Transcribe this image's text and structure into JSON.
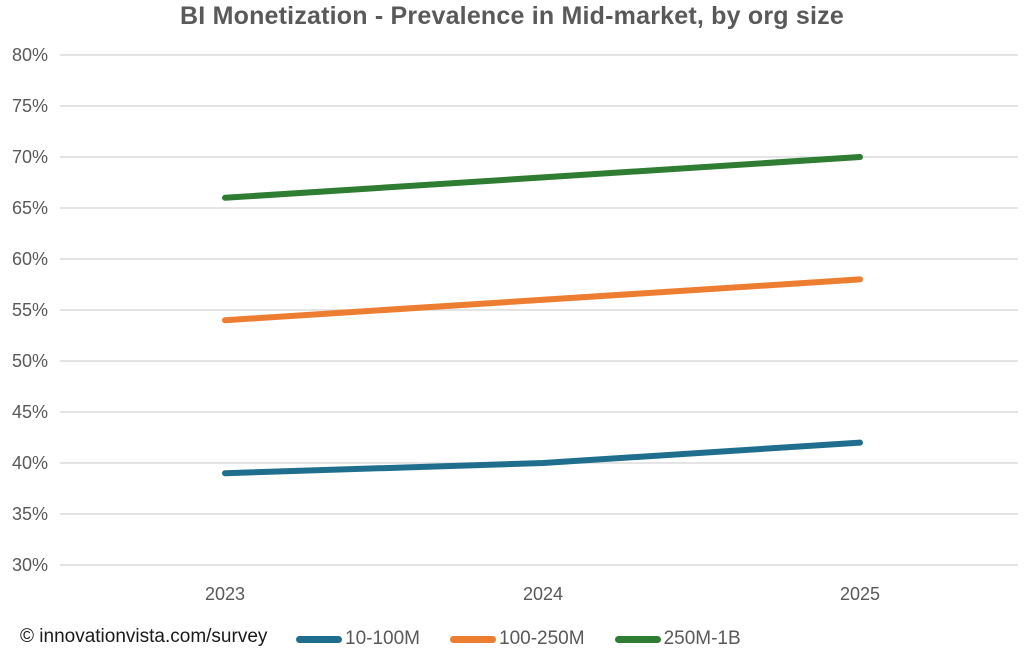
{
  "title": "BI Monetization - Prevalence in Mid-market, by org size",
  "footer": {
    "copyright": "© innovationvista.com/survey"
  },
  "chart_data": {
    "type": "line",
    "title": "BI Monetization - Prevalence in Mid-market, by org size",
    "categories": [
      "2023",
      "2024",
      "2025"
    ],
    "series": [
      {
        "name": "10-100M",
        "color": "#1F6E8E",
        "values": [
          39,
          40,
          42
        ]
      },
      {
        "name": "100-250M",
        "color": "#ED7D31",
        "values": [
          54,
          56,
          58
        ]
      },
      {
        "name": "250M-1B",
        "color": "#2E7D32",
        "values": [
          66,
          68,
          70
        ]
      }
    ],
    "xlabel": "",
    "ylabel": "",
    "ylim": [
      30,
      80
    ],
    "ytick_step": 5,
    "ytick_labels": [
      "30%",
      "35%",
      "40%",
      "45%",
      "50%",
      "55%",
      "60%",
      "65%",
      "70%",
      "75%",
      "80%"
    ],
    "grid": true,
    "legend_position": "bottom"
  },
  "colors": {
    "background": "#FFFFFF",
    "gridline": "#DCDCDC",
    "axis_label": "#595959",
    "title_text": "#595959",
    "footer_text": "#1A1A1A"
  }
}
